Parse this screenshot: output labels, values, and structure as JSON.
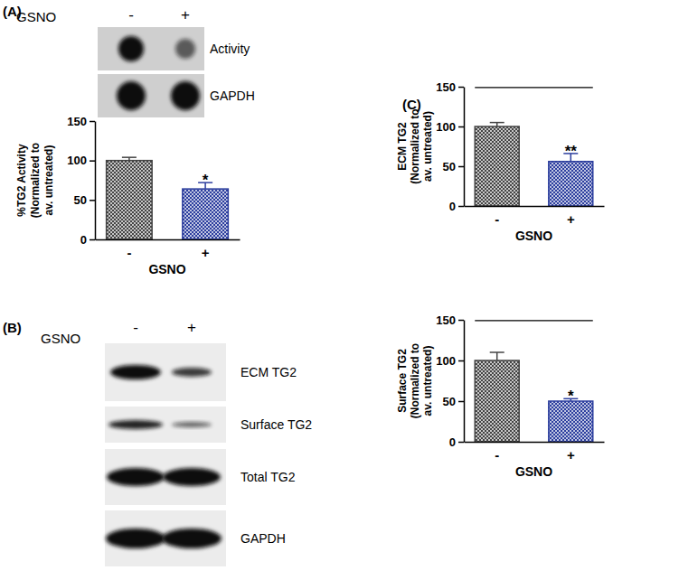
{
  "chart_data": [
    {
      "type": "bar",
      "y_label": [
        "%TG2 Activity",
        "(Normalized to",
        "av. untreated)"
      ],
      "x_label": "GSNO",
      "categories": [
        "-",
        "+"
      ],
      "values": [
        100,
        64
      ],
      "errors": [
        4,
        8
      ],
      "colors": [
        "#444444",
        "#2c3e9e"
      ],
      "ylim": [
        0,
        150
      ],
      "yticks": [
        0,
        50,
        100,
        150
      ],
      "annotations": [
        {
          "text": "*",
          "category": 1
        }
      ]
    },
    {
      "type": "bar",
      "y_label": [
        "ECM TG2",
        "(Normalized to",
        "av. untreated)"
      ],
      "x_label": "GSNO",
      "categories": [
        "-",
        "+"
      ],
      "values": [
        100,
        56
      ],
      "errors": [
        5,
        10
      ],
      "colors": [
        "#444444",
        "#2c3e9e"
      ],
      "ylim": [
        0,
        150
      ],
      "yticks": [
        0,
        50,
        100,
        150
      ],
      "annotations": [
        {
          "text": "**",
          "category": 1
        }
      ],
      "brackets": [
        {
          "from": 0,
          "to": 1,
          "y": 149
        }
      ]
    },
    {
      "type": "bar",
      "y_label": [
        "Surface TG2",
        "(Normalized to",
        "av. untreated)"
      ],
      "x_label": "GSNO",
      "categories": [
        "-",
        "+"
      ],
      "values": [
        100,
        50
      ],
      "errors": [
        10,
        3
      ],
      "colors": [
        "#444444",
        "#2c3e9e"
      ],
      "ylim": [
        0,
        150
      ],
      "yticks": [
        0,
        50,
        100,
        150
      ],
      "annotations": [
        {
          "text": "*",
          "category": 1
        }
      ],
      "brackets": [
        {
          "from": 0,
          "to": 1,
          "y": 149
        }
      ]
    }
  ],
  "panel_labels": [
    "(A)",
    "(B)",
    "(C)"
  ],
  "blots": [
    {
      "treatment_label": "GSNO",
      "lanes": [
        "-",
        "+"
      ],
      "rows": [
        "Activity",
        "GAPDH"
      ]
    },
    {
      "treatment_label": "GSNO",
      "lanes": [
        "-",
        "+"
      ],
      "rows": [
        "ECM TG2",
        "Surface TG2",
        "Total TG2",
        "GAPDH"
      ]
    }
  ]
}
